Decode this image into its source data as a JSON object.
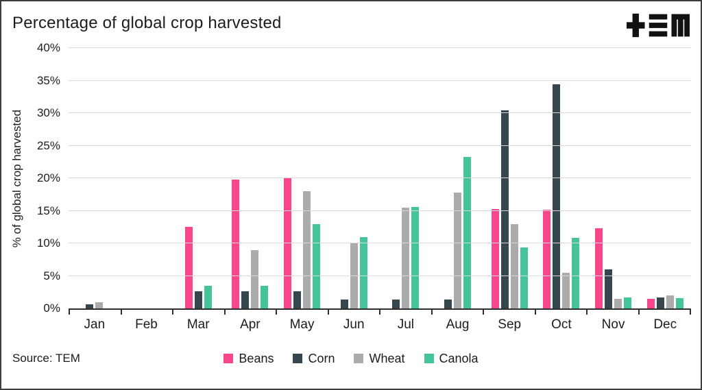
{
  "title": "Percentage of global crop harvested",
  "logo_name": "TEM",
  "ylabel": "% of global crop harvested",
  "source": "Source: TEM",
  "colors": {
    "beans": "#F9478D",
    "corn": "#36464E",
    "wheat": "#ABABAB",
    "canola": "#45C39B",
    "axis": "#2e2e2e",
    "gridline": "#d9d9d9"
  },
  "chart_data": {
    "type": "bar",
    "title": "Percentage of global crop harvested",
    "xlabel": "",
    "ylabel": "% of global crop harvested",
    "ylim": [
      0,
      40
    ],
    "ytick_step": 5,
    "yticks": [
      "0%",
      "5%",
      "10%",
      "15%",
      "20%",
      "25%",
      "30%",
      "35%",
      "40%"
    ],
    "grid": true,
    "legend_position": "bottom",
    "categories": [
      "Jan",
      "Feb",
      "Mar",
      "Apr",
      "May",
      "Jun",
      "Jul",
      "Aug",
      "Sep",
      "Oct",
      "Nov",
      "Dec"
    ],
    "series": [
      {
        "name": "Beans",
        "color": "#F9478D",
        "values": [
          0,
          0,
          12.5,
          19.8,
          20.0,
          0,
          0,
          0,
          15.3,
          15.2,
          12.3,
          1.5
        ]
      },
      {
        "name": "Corn",
        "color": "#36464E",
        "values": [
          0.6,
          0,
          2.6,
          2.6,
          2.6,
          1.4,
          1.4,
          1.4,
          30.4,
          34.4,
          6.0,
          1.7
        ]
      },
      {
        "name": "Wheat",
        "color": "#ABABAB",
        "values": [
          1.0,
          0,
          0,
          9.0,
          18.0,
          10.0,
          15.5,
          17.8,
          13.0,
          5.5,
          1.5,
          2.0
        ]
      },
      {
        "name": "Canola",
        "color": "#45C39B",
        "values": [
          0,
          0,
          3.5,
          3.5,
          13.0,
          11.0,
          15.6,
          23.3,
          9.4,
          10.8,
          1.7,
          1.6
        ]
      }
    ]
  }
}
